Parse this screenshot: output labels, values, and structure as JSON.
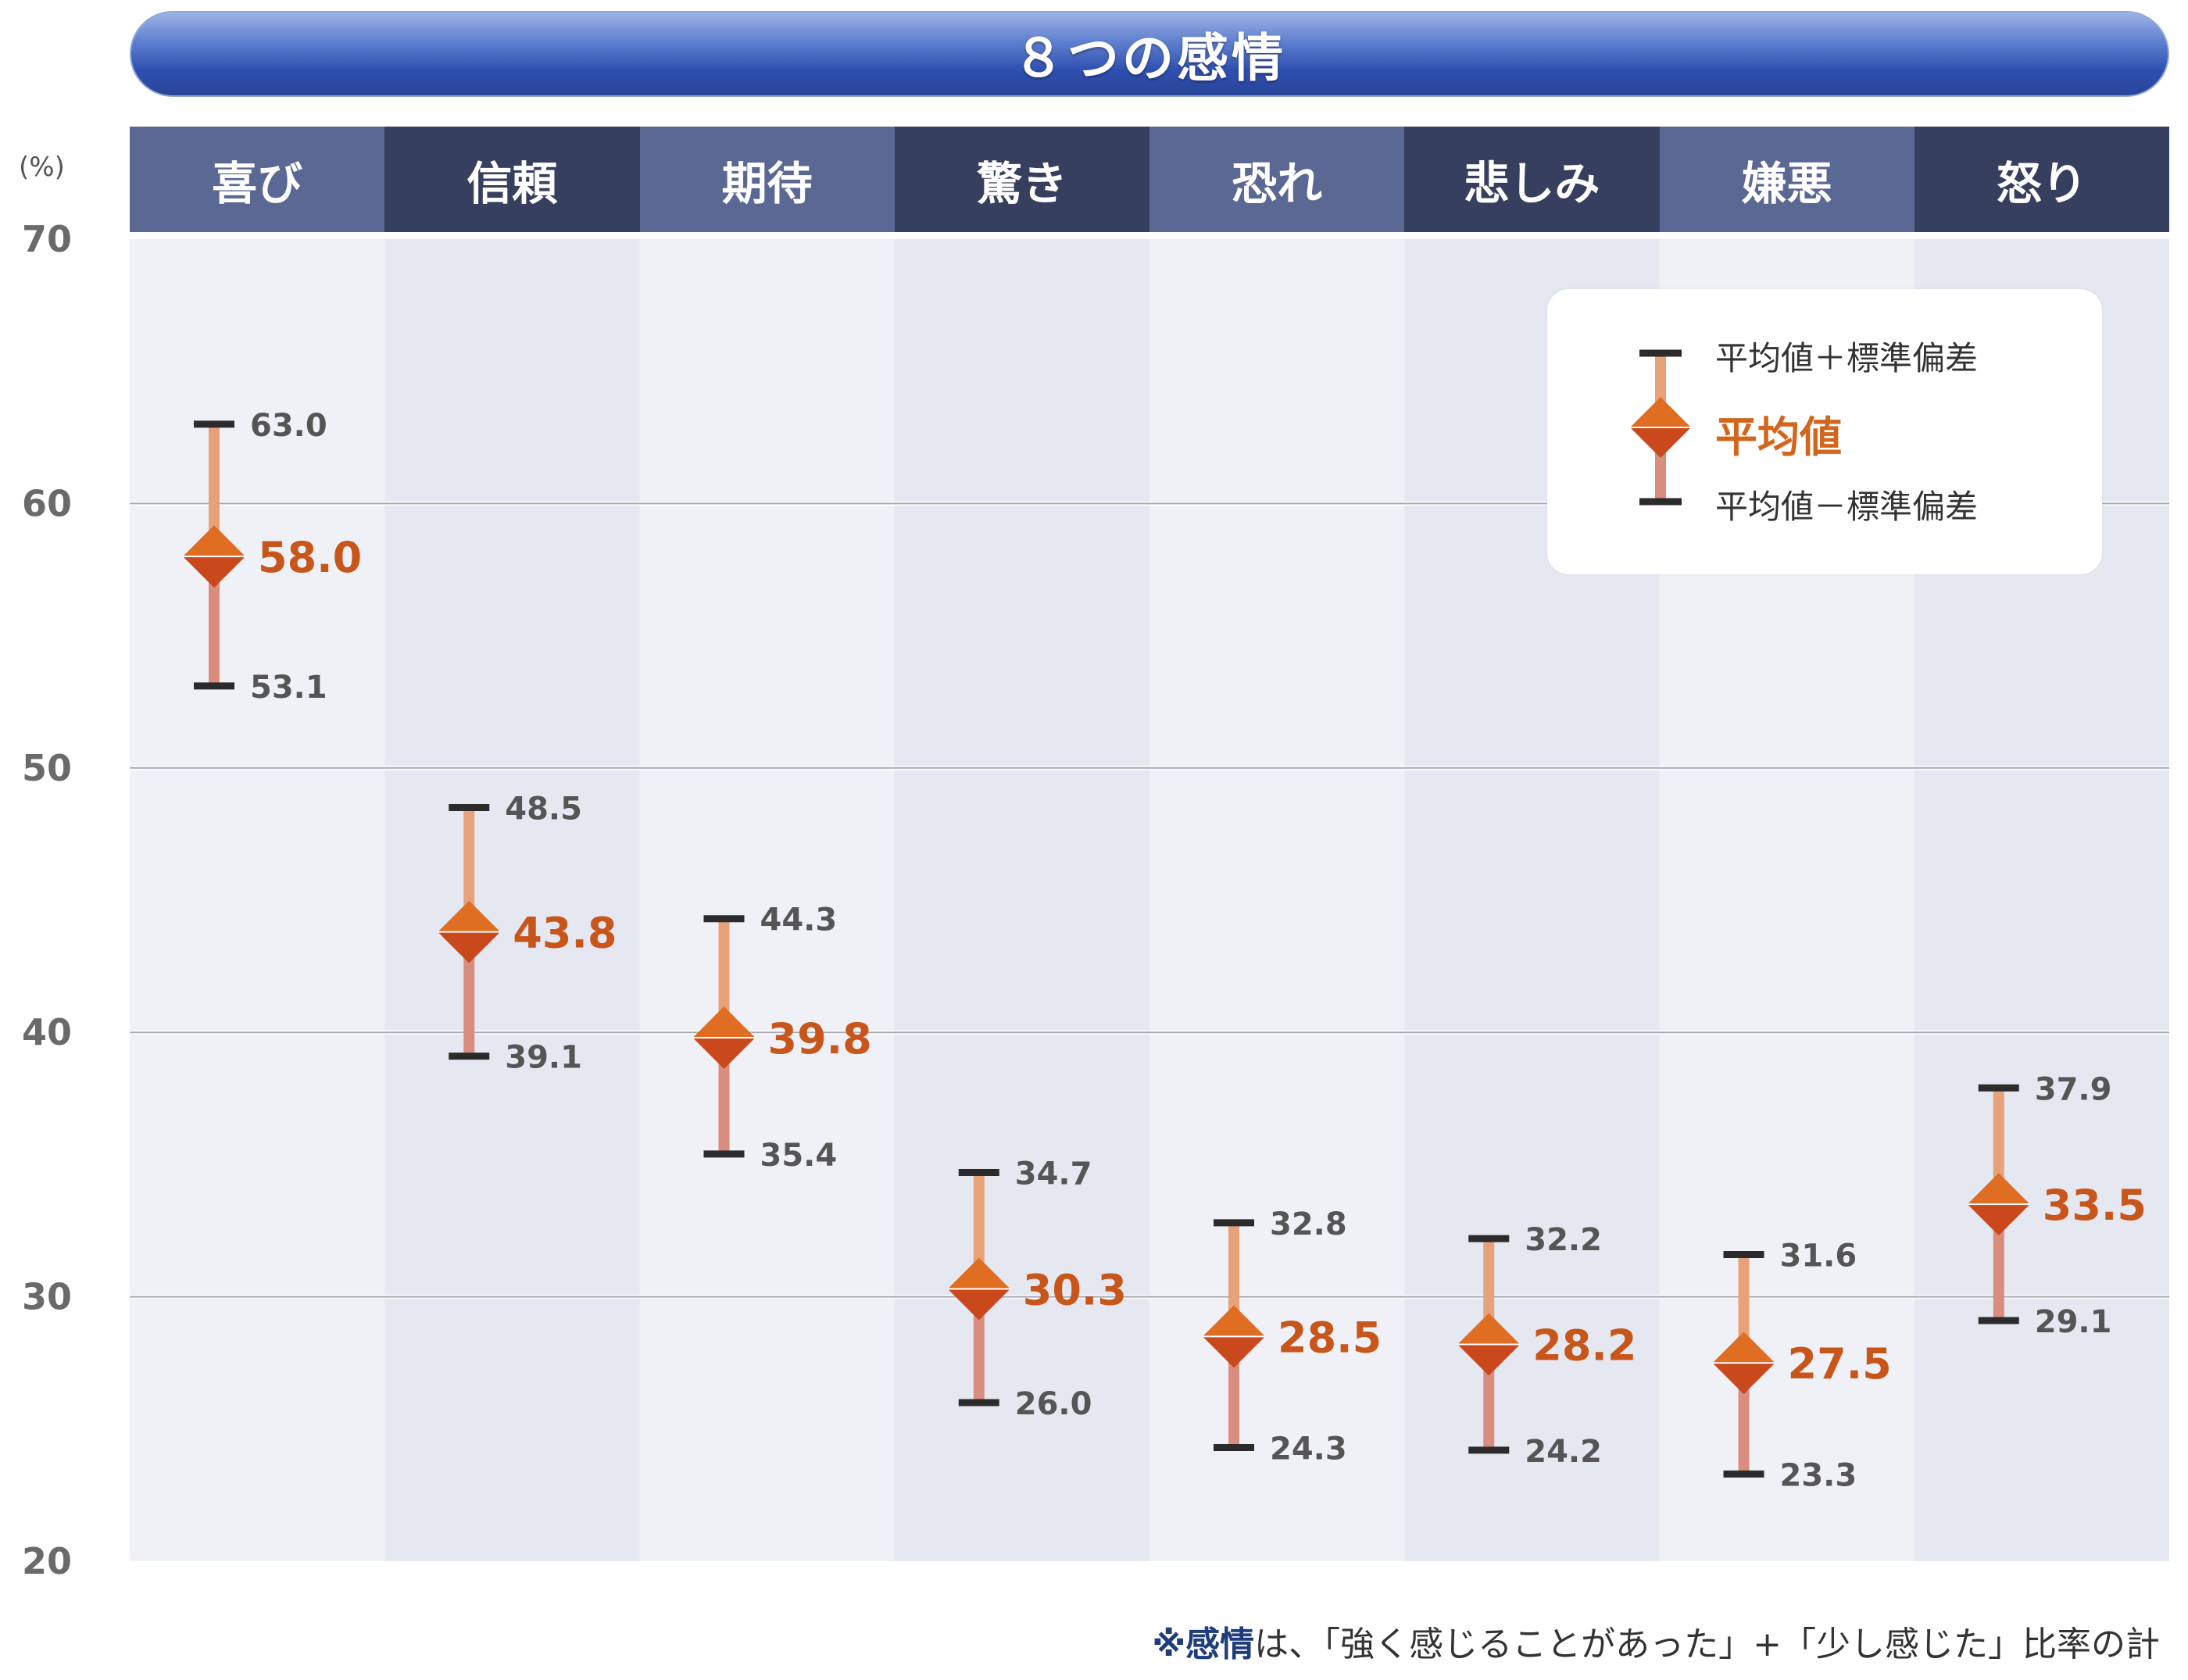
{
  "banner": {
    "title": "８つの感情"
  },
  "chart_data": {
    "type": "errorbar",
    "title": "８つの感情",
    "y_unit": "(%)",
    "ylim": [
      20,
      70
    ],
    "yticks": [
      20,
      30,
      40,
      50,
      60,
      70
    ],
    "grid": true,
    "legend_position": "top-right",
    "categories": [
      "喜び",
      "信頼",
      "期待",
      "驚き",
      "恐れ",
      "悲しみ",
      "嫌悪",
      "怒り"
    ],
    "series": [
      {
        "name": "平均値＋標準偏差",
        "values": [
          63.0,
          48.5,
          44.3,
          34.7,
          32.8,
          32.2,
          31.6,
          37.9
        ]
      },
      {
        "name": "平均値",
        "values": [
          58.0,
          43.8,
          39.8,
          30.3,
          28.5,
          28.2,
          27.5,
          33.5
        ]
      },
      {
        "name": "平均値－標準偏差",
        "values": [
          53.1,
          39.1,
          35.4,
          26.0,
          24.3,
          24.2,
          23.3,
          29.1
        ]
      }
    ],
    "colors": {
      "upper_bar": "#e8a27a",
      "lower_bar": "#d88d7e",
      "marker": "#d2661e",
      "cap": "#2b2b2b",
      "mean_label": "#c8561a"
    }
  },
  "footnote": {
    "bold": "※感情",
    "text": "は、「強く感じることがあった」+「少し感じた」比率の計"
  }
}
